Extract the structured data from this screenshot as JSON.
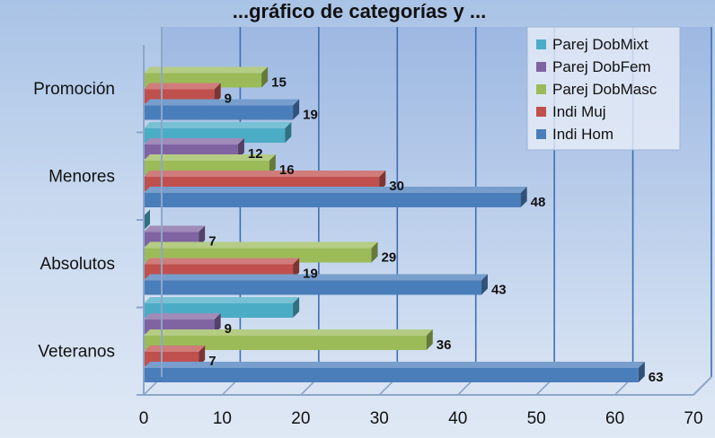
{
  "chart_data": {
    "type": "bar",
    "orientation": "horizontal",
    "style": "3d",
    "title": "...gráfico de categorías y ...",
    "categories": [
      "Veteranos",
      "Absolutos",
      "Menores",
      "Promoción"
    ],
    "series": [
      {
        "name": "Indi Hom",
        "color": "#4a7ebb",
        "values": [
          63,
          43,
          48,
          19
        ]
      },
      {
        "name": "Indi Muj",
        "color": "#c0504d",
        "values": [
          7,
          19,
          30,
          9
        ]
      },
      {
        "name": "Parej DobMasc",
        "color": "#9bbb59",
        "values": [
          36,
          29,
          16,
          15
        ]
      },
      {
        "name": "Parej DobFem",
        "color": "#8064a2",
        "values": [
          9,
          7,
          12,
          null
        ]
      },
      {
        "name": "Parej DobMixt",
        "color": "#4bacc6",
        "values": [
          19,
          0,
          18,
          null
        ]
      }
    ],
    "data_labels": {
      "Indi Hom": [
        "63",
        "43",
        "48",
        "19"
      ],
      "Indi Muj": [
        "7",
        "19",
        "30",
        "9"
      ],
      "Parej DobMasc": [
        "36",
        "29",
        "16",
        "15"
      ],
      "Parej DobFem": [
        "9",
        "7",
        "12",
        ""
      ],
      "Parej DobMixt": [
        "",
        "",
        "",
        ""
      ]
    },
    "xlim": [
      0,
      70
    ],
    "xticks": [
      "0",
      "10",
      "20",
      "30",
      "40",
      "50",
      "60",
      "70"
    ],
    "grid": true,
    "legend": "top-right"
  }
}
